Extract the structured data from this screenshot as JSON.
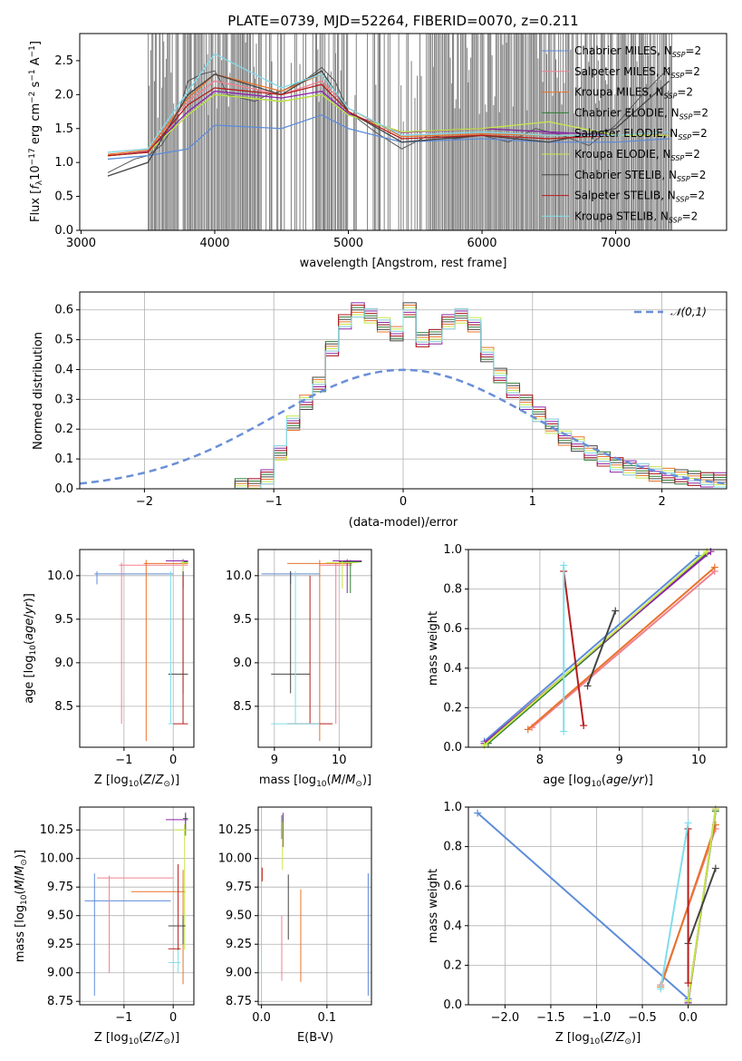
{
  "chart_data": [
    {
      "panel": "spectrum",
      "type": "line",
      "title": "PLATE=0739, MJD=52264, FIBERID=0070, z=0.211",
      "xlabel": "wavelength [Angstrom, rest frame]",
      "ylabel": "Flux [f_λ 10^-17 erg cm^-2 s^-1 A^-1]",
      "xlim": [
        2990,
        7830
      ],
      "ylim": [
        0,
        2.9
      ],
      "xticks": [
        3000,
        4000,
        5000,
        6000,
        7000
      ],
      "yticks": [
        0.0,
        0.5,
        1.0,
        1.5,
        2.0,
        2.5
      ],
      "legend_position": "top-right",
      "data_wavelength": [
        3200,
        3300,
        3400,
        3500,
        3600,
        3700,
        3800,
        3900,
        4000,
        4100,
        4200,
        4300,
        4400,
        4500,
        4600,
        4700,
        4800,
        4900,
        5000,
        5200,
        5400,
        5600,
        5800,
        6000,
        6200,
        6400,
        6600,
        6800,
        7000,
        7200,
        7400
      ],
      "data_flux": [
        0.85,
        0.95,
        1.05,
        1.1,
        1.25,
        1.55,
        2.2,
        2.3,
        2.35,
        2.0,
        1.95,
        1.9,
        2.0,
        2.05,
        2.15,
        2.25,
        2.4,
        2.2,
        1.75,
        1.45,
        1.2,
        1.4,
        1.35,
        1.4,
        1.3,
        1.5,
        1.4,
        1.25,
        1.55,
        2.0,
        2.4
      ],
      "series": [
        {
          "name": "Chabrier MILES, N_SSP=2",
          "color": "#5e8cd8",
          "x": [
            3200,
            3500,
            3800,
            4000,
            4500,
            4800,
            5000,
            5400,
            6000,
            6500,
            7000,
            7400
          ],
          "y": [
            1.05,
            1.1,
            1.2,
            1.55,
            1.5,
            1.7,
            1.5,
            1.3,
            1.35,
            1.3,
            1.3,
            1.35
          ]
        },
        {
          "name": "Salpeter MILES, N_SSP=2",
          "color": "#f08090",
          "x": [
            3200,
            3500,
            3800,
            4000,
            4500,
            4800,
            5000,
            5400,
            6000,
            6500,
            7000,
            7400
          ],
          "y": [
            1.15,
            1.2,
            1.9,
            2.2,
            2.0,
            2.2,
            1.8,
            1.4,
            1.45,
            1.4,
            1.4,
            1.45
          ]
        },
        {
          "name": "Kroupa MILES, N_SSP=2",
          "color": "#e8732a",
          "x": [
            3200,
            3500,
            3800,
            4000,
            4500,
            4800,
            5000,
            5400,
            6000,
            6500,
            7000,
            7400
          ],
          "y": [
            1.12,
            1.18,
            1.95,
            2.3,
            2.05,
            2.3,
            1.8,
            1.38,
            1.42,
            1.4,
            1.4,
            1.45
          ]
        },
        {
          "name": "Chabrier ELODIE, N_SSP=2",
          "color": "#2e7d32",
          "x": [
            3200,
            3500,
            3800,
            4000,
            4500,
            4800,
            5000,
            5400,
            6000,
            6500,
            7000,
            7400
          ],
          "y": [
            1.1,
            1.15,
            1.7,
            2.0,
            1.9,
            2.0,
            1.7,
            1.45,
            1.5,
            1.45,
            1.4,
            1.4
          ]
        },
        {
          "name": "Salpeter ELODIE, N_SSP=2",
          "color": "#8e24aa",
          "x": [
            3200,
            3500,
            3800,
            4000,
            4500,
            4800,
            5000,
            5400,
            6000,
            6500,
            7000,
            7400
          ],
          "y": [
            1.1,
            1.16,
            1.75,
            2.05,
            1.95,
            2.05,
            1.72,
            1.44,
            1.5,
            1.45,
            1.4,
            1.4
          ]
        },
        {
          "name": "Kroupa ELODIE, N_SSP=2",
          "color": "#c8e84a",
          "x": [
            3200,
            3500,
            3800,
            4000,
            4500,
            4800,
            5000,
            5400,
            6000,
            6500,
            7000,
            7400
          ],
          "y": [
            1.1,
            1.15,
            1.7,
            2.0,
            1.9,
            2.0,
            1.7,
            1.45,
            1.5,
            1.6,
            1.4,
            1.4
          ]
        },
        {
          "name": "Chabrier STELIB, N_SSP=2",
          "color": "#444444",
          "x": [
            3200,
            3500,
            3800,
            4000,
            4500,
            4800,
            5000,
            5400,
            6000,
            6500,
            7000,
            7400
          ],
          "y": [
            0.8,
            1.0,
            2.0,
            2.3,
            2.0,
            2.35,
            1.75,
            1.3,
            1.4,
            1.3,
            1.5,
            2.2
          ]
        },
        {
          "name": "Salpeter STELIB, N_SSP=2",
          "color": "#b71c1c",
          "x": [
            3200,
            3500,
            3800,
            4000,
            4500,
            4800,
            5000,
            5400,
            6000,
            6500,
            7000,
            7400
          ],
          "y": [
            1.1,
            1.15,
            1.85,
            2.1,
            2.0,
            2.15,
            1.75,
            1.35,
            1.4,
            1.35,
            1.4,
            1.45
          ]
        },
        {
          "name": "Kroupa STELIB, N_SSP=2",
          "color": "#80deea",
          "x": [
            3200,
            3500,
            3800,
            4000,
            4500,
            4800,
            5000,
            5400,
            6000,
            6500,
            7000,
            7400
          ],
          "y": [
            1.15,
            1.2,
            2.05,
            2.6,
            2.1,
            2.3,
            1.8,
            1.4,
            1.45,
            1.4,
            1.4,
            1.45
          ]
        }
      ]
    },
    {
      "panel": "residuals",
      "type": "line",
      "xlabel": "(data-model)/error",
      "ylabel": "Normed distribution",
      "xlim": [
        -2.5,
        2.5
      ],
      "ylim": [
        0,
        0.66
      ],
      "xticks": [
        -2,
        -1,
        0,
        1,
        2
      ],
      "yticks": [
        0.0,
        0.1,
        0.2,
        0.3,
        0.4,
        0.5,
        0.6
      ],
      "legend": "𝒩(0,1)",
      "legend_position": "top-right",
      "hist_bin_edges": [
        -1.3,
        -1.2,
        -1.1,
        -1.0,
        -0.9,
        -0.8,
        -0.7,
        -0.6,
        -0.5,
        -0.4,
        -0.3,
        -0.2,
        -0.1,
        0.0,
        0.1,
        0.2,
        0.3,
        0.4,
        0.5,
        0.6,
        0.7,
        0.8,
        0.9,
        1.0,
        1.1,
        1.2,
        1.3,
        1.4,
        1.5,
        1.6,
        1.7,
        1.8,
        1.9,
        2.0,
        2.1,
        2.2,
        2.3,
        2.4,
        2.5
      ],
      "hist_values": [
        0.01,
        0.01,
        0.04,
        0.12,
        0.22,
        0.29,
        0.35,
        0.47,
        0.56,
        0.6,
        0.58,
        0.55,
        0.52,
        0.6,
        0.5,
        0.51,
        0.56,
        0.58,
        0.55,
        0.45,
        0.38,
        0.33,
        0.29,
        0.25,
        0.21,
        0.17,
        0.15,
        0.12,
        0.1,
        0.08,
        0.07,
        0.06,
        0.05,
        0.045,
        0.04,
        0.035,
        0.03,
        0.03
      ]
    },
    {
      "panel": "Z-age",
      "type": "scatter",
      "xlabel": "Z [log10(Z/Z⊙)]",
      "ylabel": "age [log10(age/yr)]",
      "xlim": [
        -1.9,
        0.42
      ],
      "ylim": [
        8.03,
        10.3
      ],
      "xticks": [
        -1,
        0
      ],
      "yticks": [
        8.5,
        9.0,
        9.5,
        10.0
      ]
    },
    {
      "panel": "mass-age",
      "type": "scatter",
      "xlabel": "mass [log10(M/M⊙)]",
      "xlim": [
        8.75,
        10.5
      ],
      "ylim": [
        8.03,
        10.3
      ],
      "xticks": [
        9,
        10
      ],
      "yticks": [
        8.5,
        9.0,
        9.5,
        10.0
      ]
    },
    {
      "panel": "age-weight",
      "type": "line",
      "xlabel": "age [log10(age/yr)]",
      "ylabel": "mass weight",
      "xlim": [
        7.1,
        10.35
      ],
      "ylim": [
        0,
        1.0
      ],
      "xticks": [
        8,
        9,
        10
      ],
      "yticks": [
        0.0,
        0.2,
        0.4,
        0.6,
        0.8,
        1.0
      ],
      "series": [
        {
          "color": "#5e8cd8",
          "x": [
            7.3,
            10.0
          ],
          "y": [
            0.03,
            0.97
          ]
        },
        {
          "color": "#f08090",
          "x": [
            7.9,
            10.2
          ],
          "y": [
            0.1,
            0.89
          ]
        },
        {
          "color": "#e8732a",
          "x": [
            7.85,
            10.2
          ],
          "y": [
            0.09,
            0.91
          ]
        },
        {
          "color": "#2e7d32",
          "x": [
            7.35,
            10.1
          ],
          "y": [
            0.02,
            0.98
          ]
        },
        {
          "color": "#8e24aa",
          "x": [
            7.3,
            10.15
          ],
          "y": [
            0.02,
            0.99
          ]
        },
        {
          "color": "#c8e84a",
          "x": [
            7.3,
            10.1
          ],
          "y": [
            0.01,
            0.99
          ]
        },
        {
          "color": "#444444",
          "x": [
            8.6,
            8.95
          ],
          "y": [
            0.31,
            0.69
          ]
        },
        {
          "color": "#b71c1c",
          "x": [
            8.3,
            8.55
          ],
          "y": [
            0.89,
            0.11
          ]
        },
        {
          "color": "#80deea",
          "x": [
            8.3,
            8.3
          ],
          "y": [
            0.92,
            0.08
          ]
        }
      ]
    },
    {
      "panel": "Z-mass",
      "type": "scatter",
      "xlabel": "Z [log10(Z/Z⊙)]",
      "ylabel": "mass [log10(M/M⊙)]",
      "xlim": [
        -1.9,
        0.42
      ],
      "ylim": [
        8.72,
        10.45
      ],
      "xticks": [
        -1,
        0
      ],
      "yticks": [
        8.75,
        9.0,
        9.25,
        9.5,
        9.75,
        10.0,
        10.25
      ]
    },
    {
      "panel": "EBV-mass",
      "type": "scatter",
      "xlabel": "E(B-V)",
      "xlim": [
        -0.005,
        0.168
      ],
      "ylim": [
        8.72,
        10.45
      ],
      "xticks": [
        0.0,
        0.1
      ],
      "yticks": [
        8.75,
        9.0,
        9.25,
        9.5,
        9.75,
        10.0,
        10.25
      ]
    },
    {
      "panel": "Z-weight",
      "type": "line",
      "xlabel": "Z [log10(Z/Z⊙)]",
      "ylabel": "mass weight",
      "xlim": [
        -2.4,
        0.42
      ],
      "ylim": [
        0,
        1.0
      ],
      "xticks": [
        -2.0,
        -1.5,
        -1.0,
        -0.5,
        0.0
      ],
      "yticks": [
        0.0,
        0.2,
        0.4,
        0.6,
        0.8,
        1.0
      ],
      "series": [
        {
          "color": "#5e8cd8",
          "x": [
            -2.3,
            0.0
          ],
          "y": [
            0.97,
            0.03
          ]
        },
        {
          "color": "#f08090",
          "x": [
            -0.3,
            0.3
          ],
          "y": [
            0.1,
            0.89
          ]
        },
        {
          "color": "#e8732a",
          "x": [
            -0.3,
            0.3
          ],
          "y": [
            0.09,
            0.91
          ]
        },
        {
          "color": "#2e7d32",
          "x": [
            0.0,
            0.3
          ],
          "y": [
            0.02,
            0.98
          ]
        },
        {
          "color": "#8e24aa",
          "x": [
            0.0,
            0.3
          ],
          "y": [
            0.01,
            0.99
          ]
        },
        {
          "color": "#c8e84a",
          "x": [
            0.0,
            0.3
          ],
          "y": [
            0.02,
            0.99
          ]
        },
        {
          "color": "#444444",
          "x": [
            0.0,
            0.3
          ],
          "y": [
            0.31,
            0.69
          ]
        },
        {
          "color": "#b71c1c",
          "x": [
            0.0,
            0.0
          ],
          "y": [
            0.89,
            0.11
          ]
        },
        {
          "color": "#80deea",
          "x": [
            -0.3,
            0.0
          ],
          "y": [
            0.08,
            0.92
          ]
        }
      ]
    }
  ]
}
